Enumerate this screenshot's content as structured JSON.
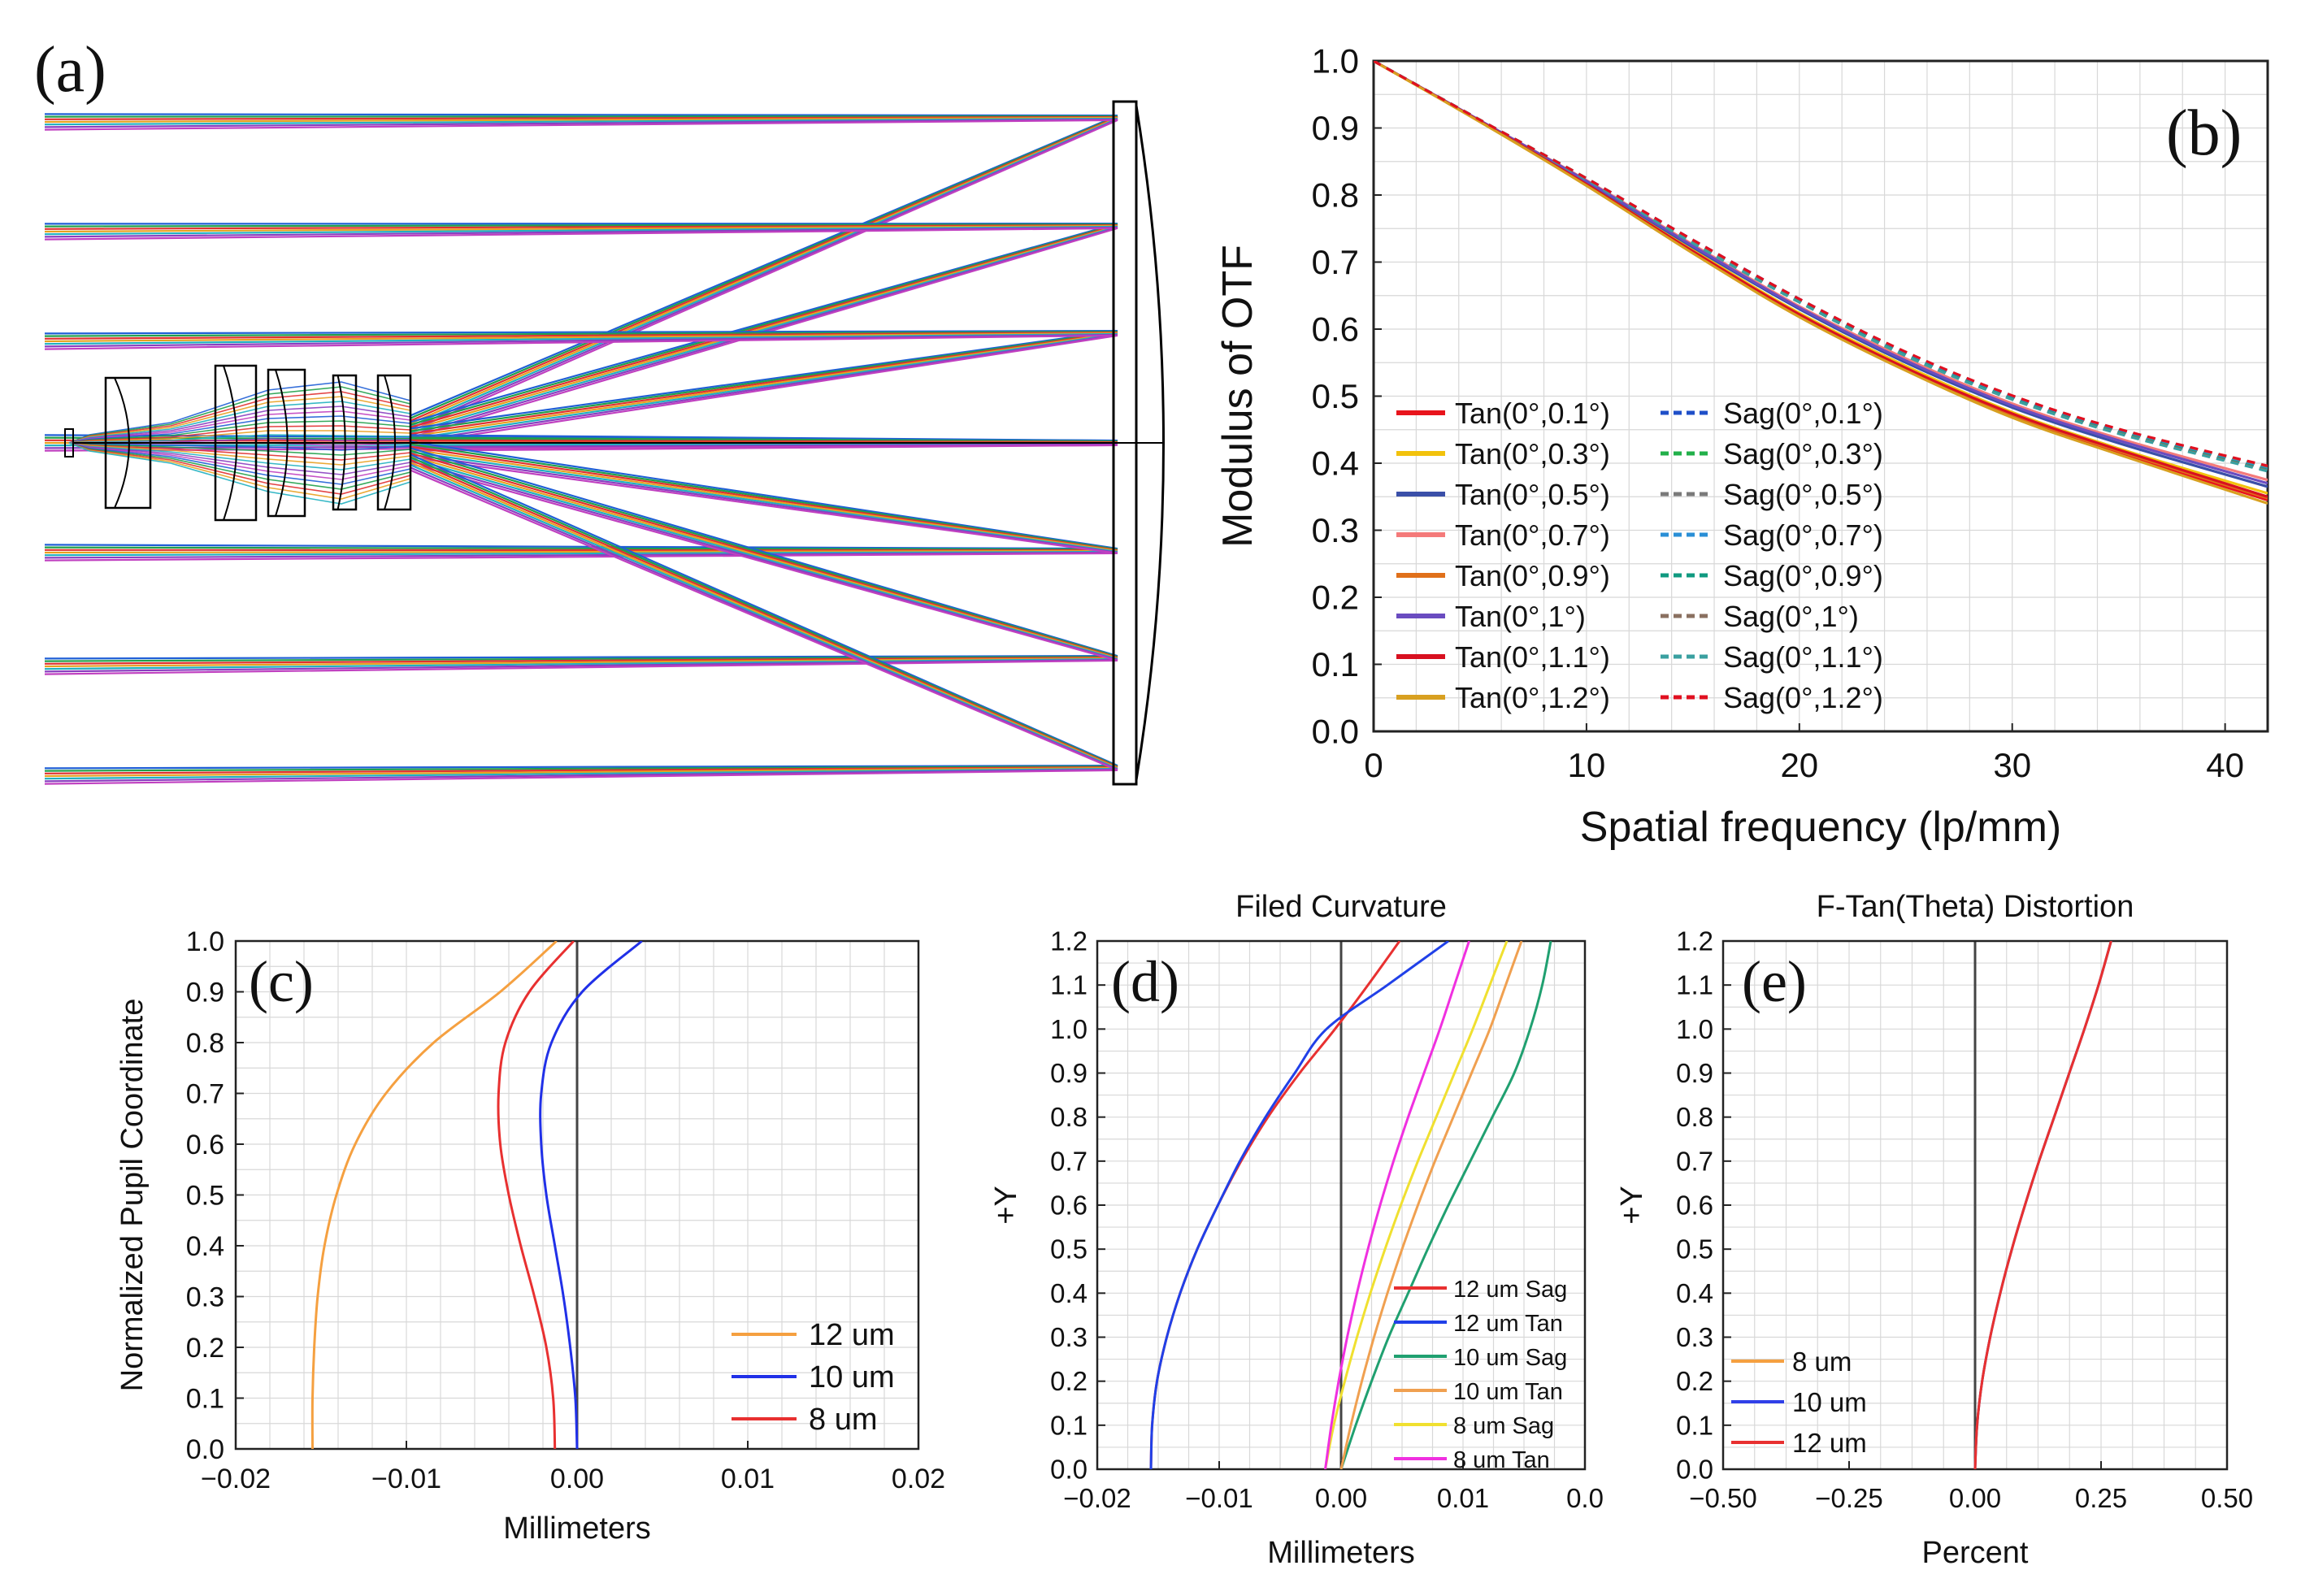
{
  "panels": {
    "a": {
      "label": "(a)",
      "ray_colors": [
        "#1f5fd6",
        "#20a04a",
        "#e03030",
        "#e8a020",
        "#20b0c0",
        "#8a3fc0",
        "#c040c0"
      ]
    },
    "b": {
      "label": "(b)"
    },
    "c": {
      "label": "(c)"
    },
    "d": {
      "label": "(d)"
    },
    "e": {
      "label": "(e)"
    }
  },
  "chart_data": [
    {
      "id": "b",
      "type": "line",
      "title": "",
      "xlabel": "Spatial frequency (lp/mm)",
      "ylabel": "Modulus of OTF",
      "xlim": [
        0,
        42
      ],
      "ylim": [
        0,
        1.0
      ],
      "xticks": [
        "0",
        "10",
        "20",
        "30",
        "40"
      ],
      "yticks": [
        "0.0",
        "0.1",
        "0.2",
        "0.3",
        "0.4",
        "0.5",
        "0.6",
        "0.7",
        "0.8",
        "0.9",
        "1.0"
      ],
      "x": [
        0,
        5,
        10,
        15,
        20,
        25,
        30,
        35,
        42
      ],
      "series": [
        {
          "name": "Tan(0°,0.1°)",
          "color": "#e8141c",
          "dash": false,
          "values": [
            1.0,
            0.91,
            0.815,
            0.715,
            0.62,
            0.54,
            0.47,
            0.415,
            0.345
          ]
        },
        {
          "name": "Sag(0°,0.1°)",
          "color": "#1f4fc8",
          "dash": true,
          "values": [
            1.0,
            0.912,
            0.825,
            0.733,
            0.645,
            0.565,
            0.5,
            0.45,
            0.395
          ]
        },
        {
          "name": "Tan(0°,0.3°)",
          "color": "#f2c20c",
          "dash": false,
          "values": [
            1.0,
            0.91,
            0.817,
            0.718,
            0.624,
            0.545,
            0.476,
            0.422,
            0.355
          ]
        },
        {
          "name": "Sag(0°,0.3°)",
          "color": "#22b04a",
          "dash": true,
          "values": [
            1.0,
            0.912,
            0.825,
            0.732,
            0.644,
            0.564,
            0.499,
            0.449,
            0.394
          ]
        },
        {
          "name": "Tan(0°,0.5°)",
          "color": "#3a4fa8",
          "dash": false,
          "values": [
            1.0,
            0.911,
            0.82,
            0.722,
            0.63,
            0.55,
            0.483,
            0.43,
            0.365
          ]
        },
        {
          "name": "Sag(0°,0.5°)",
          "color": "#7a7a7a",
          "dash": true,
          "values": [
            1.0,
            0.912,
            0.824,
            0.731,
            0.643,
            0.563,
            0.498,
            0.448,
            0.392
          ]
        },
        {
          "name": "Tan(0°,0.7°)",
          "color": "#f47a7a",
          "dash": false,
          "values": [
            1.0,
            0.911,
            0.822,
            0.726,
            0.634,
            0.556,
            0.489,
            0.437,
            0.375
          ]
        },
        {
          "name": "Sag(0°,0.7°)",
          "color": "#2a8fd6",
          "dash": true,
          "values": [
            1.0,
            0.912,
            0.824,
            0.73,
            0.642,
            0.562,
            0.497,
            0.447,
            0.391
          ]
        },
        {
          "name": "Tan(0°,0.9°)",
          "color": "#e0701a",
          "dash": false,
          "values": [
            1.0,
            0.91,
            0.816,
            0.716,
            0.621,
            0.541,
            0.472,
            0.418,
            0.348
          ]
        },
        {
          "name": "Sag(0°,0.9°)",
          "color": "#109a80",
          "dash": true,
          "values": [
            1.0,
            0.912,
            0.823,
            0.729,
            0.641,
            0.561,
            0.496,
            0.446,
            0.39
          ]
        },
        {
          "name": "Tan(0°,1°)",
          "color": "#6a4cc0",
          "dash": false,
          "values": [
            1.0,
            0.911,
            0.821,
            0.724,
            0.632,
            0.553,
            0.486,
            0.434,
            0.37
          ]
        },
        {
          "name": "Sag(0°,1°)",
          "color": "#8a7060",
          "dash": true,
          "values": [
            1.0,
            0.912,
            0.823,
            0.729,
            0.64,
            0.56,
            0.495,
            0.445,
            0.389
          ]
        },
        {
          "name": "Tan(0°,1.1°)",
          "color": "#d81020",
          "dash": false,
          "values": [
            1.0,
            0.91,
            0.816,
            0.716,
            0.622,
            0.542,
            0.474,
            0.42,
            0.35
          ]
        },
        {
          "name": "Sag(0°,1.1°)",
          "color": "#3aa0a0",
          "dash": true,
          "values": [
            1.0,
            0.912,
            0.823,
            0.728,
            0.64,
            0.56,
            0.495,
            0.444,
            0.388
          ]
        },
        {
          "name": "Tan(0°,1.2°)",
          "color": "#d8a020",
          "dash": false,
          "values": [
            1.0,
            0.909,
            0.814,
            0.713,
            0.618,
            0.538,
            0.468,
            0.413,
            0.34
          ]
        },
        {
          "name": "Sag(0°,1.2°)",
          "color": "#e01020",
          "dash": true,
          "values": [
            1.0,
            0.912,
            0.825,
            0.733,
            0.645,
            0.566,
            0.501,
            0.451,
            0.396
          ]
        }
      ]
    },
    {
      "id": "c",
      "type": "line",
      "title": "",
      "xlabel": "Millimeters",
      "ylabel": "Normalized Pupil Coordinate",
      "xlim": [
        -0.02,
        0.02
      ],
      "ylim": [
        0,
        1.0
      ],
      "xticks": [
        "-0.02",
        "-0.01",
        "0.00",
        "0.01",
        "0.02"
      ],
      "yticks": [
        "0.0",
        "0.1",
        "0.2",
        "0.3",
        "0.4",
        "0.5",
        "0.6",
        "0.7",
        "0.8",
        "0.9",
        "1.0"
      ],
      "series": [
        {
          "name": "12 um",
          "color": "#f5a040",
          "x": [
            -0.0155,
            -0.0155,
            -0.0154,
            -0.0152,
            -0.0148,
            -0.0141,
            -0.013,
            -0.0112,
            -0.0084,
            -0.0045,
            -0.0012
          ],
          "y": [
            0.0,
            0.1,
            0.2,
            0.3,
            0.4,
            0.5,
            0.6,
            0.7,
            0.8,
            0.9,
            1.0
          ]
        },
        {
          "name": "10 um",
          "color": "#2030e8",
          "x": [
            0.0,
            -0.0001,
            -0.0004,
            -0.0008,
            -0.0013,
            -0.0018,
            -0.0021,
            -0.0021,
            -0.0015,
            0.0003,
            0.0038
          ],
          "y": [
            0.0,
            0.1,
            0.2,
            0.3,
            0.4,
            0.5,
            0.6,
            0.7,
            0.8,
            0.9,
            1.0
          ]
        },
        {
          "name": "8 um",
          "color": "#e83030",
          "x": [
            -0.0013,
            -0.0014,
            -0.0018,
            -0.0025,
            -0.0033,
            -0.004,
            -0.0045,
            -0.0046,
            -0.0042,
            -0.0028,
            -0.0002
          ],
          "y": [
            0.0,
            0.1,
            0.2,
            0.3,
            0.4,
            0.5,
            0.6,
            0.7,
            0.8,
            0.9,
            1.0
          ]
        }
      ]
    },
    {
      "id": "d",
      "type": "line",
      "title": "Filed Curvature",
      "xlabel": "Millimeters",
      "ylabel": "+Y",
      "xlim": [
        -0.02,
        0.02
      ],
      "ylim": [
        0,
        1.2
      ],
      "xticks": [
        "-0.02",
        "-0.01",
        "0.00",
        "0.01",
        "0.0"
      ],
      "yticks": [
        "0.0",
        "0.1",
        "0.2",
        "0.3",
        "0.4",
        "0.5",
        "0.6",
        "0.7",
        "0.8",
        "0.9",
        "1.0",
        "1.1",
        "1.2"
      ],
      "y": [
        0.0,
        0.1,
        0.2,
        0.3,
        0.4,
        0.5,
        0.6,
        0.7,
        0.8,
        0.9,
        1.0,
        1.1,
        1.2
      ],
      "series": [
        {
          "name": "12 um Sag",
          "color": "#e83030",
          "values": [
            -0.0156,
            -0.0155,
            -0.0151,
            -0.0143,
            -0.0132,
            -0.0118,
            -0.0101,
            -0.0082,
            -0.006,
            -0.0034,
            -0.0005,
            0.0022,
            0.0048
          ]
        },
        {
          "name": "12 um Tan",
          "color": "#2040e8",
          "values": [
            -0.0156,
            -0.0155,
            -0.0151,
            -0.0143,
            -0.0132,
            -0.0118,
            -0.0101,
            -0.0083,
            -0.0062,
            -0.0038,
            -0.0012,
            0.0038,
            0.0088
          ]
        },
        {
          "name": "10 um Sag",
          "color": "#20a070",
          "values": [
            0.0,
            0.0012,
            0.0025,
            0.0039,
            0.0055,
            0.0071,
            0.0088,
            0.0106,
            0.0124,
            0.0142,
            0.0155,
            0.0165,
            0.0172
          ]
        },
        {
          "name": "10 um Tan",
          "color": "#f0a050",
          "values": [
            0.0,
            0.0008,
            0.0017,
            0.0027,
            0.0038,
            0.005,
            0.0063,
            0.0077,
            0.0092,
            0.0107,
            0.0122,
            0.0135,
            0.0148
          ]
        },
        {
          "name": "8 um Sag",
          "color": "#f0e030",
          "values": [
            -0.0013,
            -0.0006,
            0.0003,
            0.0013,
            0.0024,
            0.0036,
            0.0049,
            0.0063,
            0.0078,
            0.0093,
            0.0108,
            0.0122,
            0.0136
          ]
        },
        {
          "name": "8 um Tan",
          "color": "#f030e0",
          "values": [
            -0.0013,
            -0.0008,
            -0.0002,
            0.0005,
            0.0013,
            0.0022,
            0.0032,
            0.0043,
            0.0055,
            0.0068,
            0.0081,
            0.0093,
            0.0105
          ]
        }
      ]
    },
    {
      "id": "e",
      "type": "line",
      "title": "F-Tan(Theta) Distortion",
      "xlabel": "Percent",
      "ylabel": "+Y",
      "xlim": [
        -0.5,
        0.5
      ],
      "ylim": [
        0,
        1.2
      ],
      "xticks": [
        "-0.50",
        "-0.25",
        "0.00",
        "0.25",
        "0.50"
      ],
      "yticks": [
        "0.0",
        "0.1",
        "0.2",
        "0.3",
        "0.4",
        "0.5",
        "0.6",
        "0.7",
        "0.8",
        "0.9",
        "1.0",
        "1.1",
        "1.2"
      ],
      "y": [
        0.0,
        0.1,
        0.2,
        0.3,
        0.4,
        0.5,
        0.6,
        0.7,
        0.8,
        0.9,
        1.0,
        1.1,
        1.2
      ],
      "series": [
        {
          "name": "8 um",
          "color": "#f5a040",
          "values": [
            0.0,
            0.004,
            0.014,
            0.03,
            0.05,
            0.073,
            0.099,
            0.127,
            0.157,
            0.187,
            0.217,
            0.245,
            0.27
          ]
        },
        {
          "name": "10 um",
          "color": "#3040e8",
          "values": [
            0.0,
            0.004,
            0.014,
            0.03,
            0.05,
            0.073,
            0.099,
            0.127,
            0.157,
            0.187,
            0.217,
            0.245,
            0.27
          ]
        },
        {
          "name": "12 um",
          "color": "#e83030",
          "values": [
            0.0,
            0.004,
            0.014,
            0.03,
            0.05,
            0.073,
            0.099,
            0.127,
            0.157,
            0.187,
            0.217,
            0.245,
            0.27
          ]
        }
      ]
    }
  ]
}
